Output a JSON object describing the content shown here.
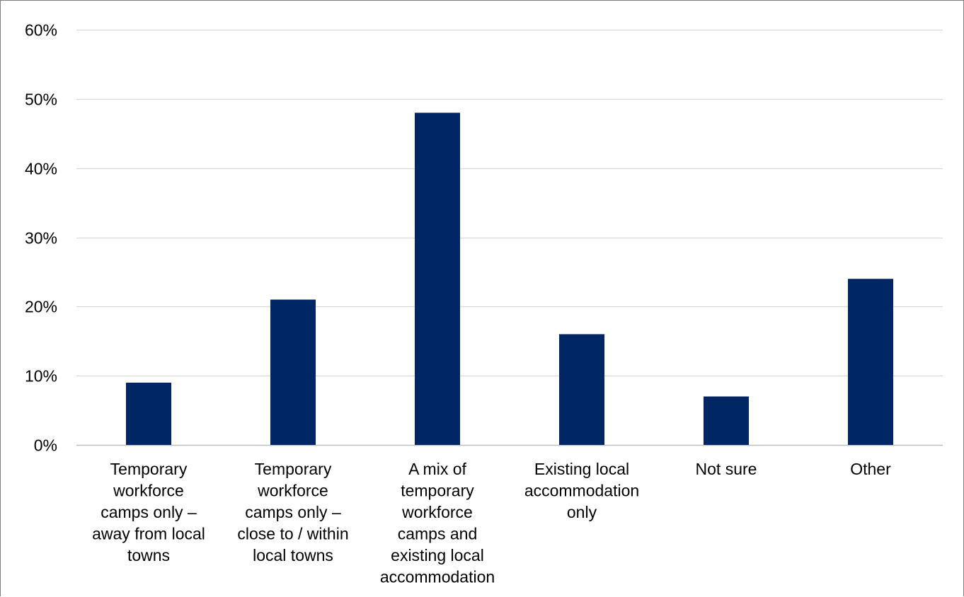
{
  "chart_data": {
    "type": "bar",
    "title": "",
    "xlabel": "",
    "ylabel": "",
    "categories": [
      "Temporary workforce camps only – away from local towns",
      "Temporary workforce camps only – close to / within local towns",
      "A mix of temporary workforce camps and existing local accommodation",
      "Existing local accommodation only",
      "Not sure",
      "Other"
    ],
    "category_lines": [
      [
        "Temporary",
        "workforce",
        "camps only –",
        "away from local",
        "towns"
      ],
      [
        "Temporary",
        "workforce",
        "camps only –",
        "close to / within",
        "local towns"
      ],
      [
        "A mix of",
        "temporary",
        "workforce",
        "camps and",
        "existing local",
        "accommodation"
      ],
      [
        "Existing local",
        "accommodation",
        "only"
      ],
      [
        "Not sure"
      ],
      [
        "Other"
      ]
    ],
    "values": [
      9,
      21,
      48,
      16,
      7,
      24
    ],
    "ylim": [
      0,
      60
    ],
    "yticks": [
      0,
      10,
      20,
      30,
      40,
      50,
      60
    ],
    "ytick_labels": [
      "0%",
      "10%",
      "20%",
      "30%",
      "40%",
      "50%",
      "60%"
    ],
    "grid": true,
    "legend": "none",
    "colors": {
      "bar": "#002664",
      "grid": "#d9d9d9",
      "axis": "#bfbfbf",
      "text": "#000000"
    }
  }
}
